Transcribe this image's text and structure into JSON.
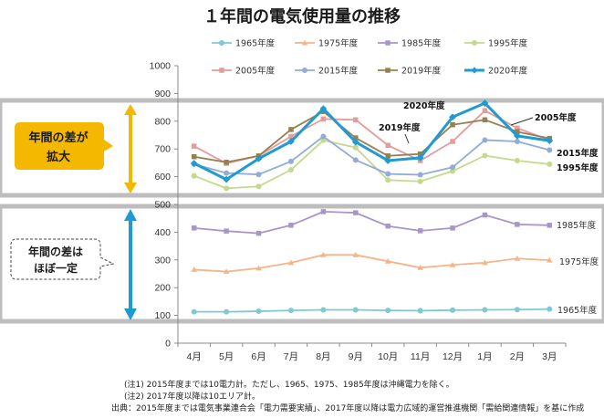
{
  "chart_data": {
    "type": "line",
    "title": "１年間の電気使用量の推移",
    "categories": [
      "4月",
      "5月",
      "6月",
      "7月",
      "8月",
      "9月",
      "10月",
      "11月",
      "12月",
      "1月",
      "2月",
      "3月"
    ],
    "ylim": [
      0,
      1000
    ],
    "yticks": [
      0,
      100,
      200,
      300,
      400,
      500,
      600,
      700,
      800,
      900,
      1000
    ],
    "grid": false,
    "legend_position": "top",
    "series": [
      {
        "name": "1965年度",
        "color": "#7fc9d4",
        "marker": "circle",
        "values": [
          113,
          113,
          115,
          118,
          120,
          120,
          118,
          117,
          119,
          120,
          121,
          123
        ]
      },
      {
        "name": "1975年度",
        "color": "#f5b48a",
        "marker": "triangle",
        "values": [
          265,
          258,
          270,
          290,
          318,
          318,
          295,
          272,
          282,
          290,
          305,
          299
        ]
      },
      {
        "name": "1985年度",
        "color": "#a896c8",
        "marker": "square",
        "values": [
          415,
          404,
          396,
          425,
          474,
          470,
          422,
          405,
          415,
          462,
          428,
          425
        ]
      },
      {
        "name": "1995年度",
        "color": "#c5d98a",
        "marker": "circle",
        "values": [
          603,
          558,
          565,
          625,
          731,
          705,
          588,
          583,
          620,
          676,
          658,
          645
        ]
      },
      {
        "name": "2005年度",
        "color": "#e39c9c",
        "marker": "square",
        "values": [
          710,
          648,
          675,
          745,
          808,
          805,
          713,
          658,
          727,
          838,
          775,
          732
        ]
      },
      {
        "name": "2015年度",
        "color": "#92acd8",
        "marker": "circle",
        "values": [
          645,
          613,
          608,
          655,
          745,
          660,
          610,
          607,
          634,
          732,
          727,
          696
        ]
      },
      {
        "name": "2019年度",
        "color": "#968050",
        "marker": "square",
        "values": [
          672,
          652,
          675,
          770,
          835,
          740,
          675,
          682,
          787,
          805,
          762,
          738
        ]
      },
      {
        "name": "2020年度",
        "color": "#1f9ad2",
        "marker": "diamond",
        "values": [
          648,
          590,
          665,
          727,
          845,
          725,
          658,
          668,
          815,
          865,
          747,
          730
        ],
        "bold": true
      }
    ],
    "annotations": {
      "y2020": "2020年度",
      "y2019": "2019年度",
      "y2005": "2005年度",
      "y2015": "2015年度",
      "y1995": "1995年度",
      "y1985": "1985年度",
      "y1975": "1975年度",
      "y1965": "1965年度"
    },
    "callouts": {
      "expand_line1": "年間の差が",
      "expand_line2": "拡大",
      "flat_line1": "年間の差は",
      "flat_line2": "ほぼ一定"
    },
    "colors": {
      "band": "#bdbdbd",
      "callout_fill": "#f5b800",
      "arrow_orange": "#f5b800",
      "arrow_blue": "#1f9ad2"
    }
  },
  "notes": {
    "note1": "(注1) 2015年度までは10電力計。ただし、1965、1975、1985年度は沖縄電力を除く。",
    "note2": "(注2) 2017年度以降は10エリア計。",
    "source": "出典：2015年度までは電気事業連合会「電力需要実績」、2017年度以降は電力広域的運営推進機関「需給関連情報」を基に作成"
  }
}
